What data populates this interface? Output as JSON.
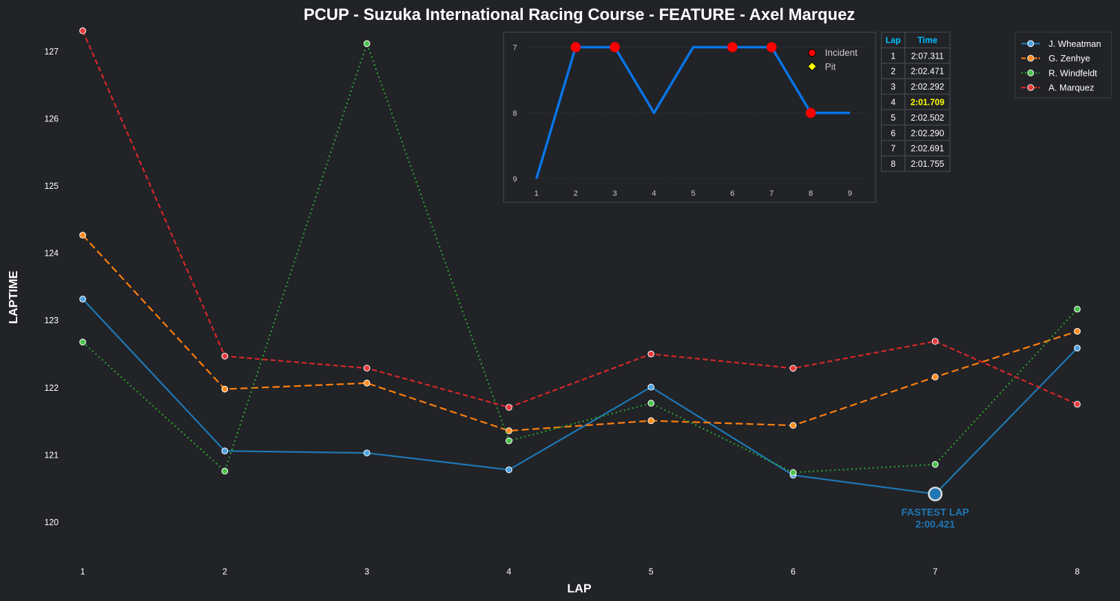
{
  "chart_data": [
    {
      "type": "line",
      "title": "PCUP - Suzuka International Racing Course - FEATURE - Axel Marquez",
      "xlabel": "LAP",
      "ylabel": "LAPTIME",
      "x": [
        1,
        2,
        3,
        4,
        5,
        6,
        7,
        8
      ],
      "xlim": [
        0.73,
        8.27
      ],
      "ylim": [
        119.37,
        127.45
      ],
      "yticks": [
        120,
        121,
        122,
        123,
        124,
        125,
        126,
        127
      ],
      "grid": false,
      "legend_placement": "top-right",
      "series": [
        {
          "name": "J. Wheatman",
          "color": "#1f77b4",
          "marker": "#4fa3e0",
          "dash": "",
          "values": [
            123.32,
            121.06,
            121.03,
            120.78,
            122.01,
            120.7,
            120.42,
            122.59
          ]
        },
        {
          "name": "G. Zenhye",
          "color": "#ff7f0e",
          "marker": "#ff8c1f",
          "dash": "10,5",
          "values": [
            124.27,
            121.98,
            122.07,
            121.36,
            121.51,
            121.44,
            122.16,
            122.84
          ]
        },
        {
          "name": "R. Windfeldt",
          "color": "#2ca02c",
          "marker": "#4cc24c",
          "dash": "2,4",
          "values": [
            122.68,
            120.76,
            127.12,
            121.21,
            121.77,
            120.74,
            120.86,
            123.17
          ]
        },
        {
          "name": "A. Marquez",
          "color": "#d62728",
          "marker": "#e8383a",
          "dash": "7,4",
          "values": [
            127.311,
            122.471,
            122.292,
            121.709,
            122.502,
            122.29,
            122.691,
            121.755
          ]
        }
      ],
      "annotation": {
        "series": 0,
        "lap": 7,
        "label": "FASTEST LAP",
        "value": "2:00.421",
        "color": "#1f77b4"
      }
    },
    {
      "type": "line",
      "title": "",
      "x": [
        1,
        2,
        3,
        4,
        5,
        6,
        7,
        8,
        9
      ],
      "values": [
        9,
        7,
        7,
        8,
        7,
        7,
        7,
        8,
        8
      ],
      "yticks": [
        7,
        8,
        9
      ],
      "ylim": [
        9,
        7
      ],
      "inverted_y": true,
      "color": "#0a74e6",
      "incident_laps": [
        2,
        3,
        6,
        7,
        8
      ],
      "pit_laps": [],
      "legend": [
        {
          "label": "Incident",
          "color": "#ff0000"
        },
        {
          "label": "Pit",
          "color": "#ffff00"
        }
      ]
    }
  ],
  "lap_table": {
    "headers": [
      "Lap",
      "Time"
    ],
    "rows": [
      [
        "1",
        "2:07.311"
      ],
      [
        "2",
        "2:02.471"
      ],
      [
        "3",
        "2:02.292"
      ],
      [
        "4",
        "2:01.709"
      ],
      [
        "5",
        "2:02.502"
      ],
      [
        "6",
        "2:02.290"
      ],
      [
        "7",
        "2:02.691"
      ],
      [
        "8",
        "2:01.755"
      ]
    ],
    "best_row": 3,
    "header_color": "#00bfff",
    "best_color": "#ffff00"
  }
}
